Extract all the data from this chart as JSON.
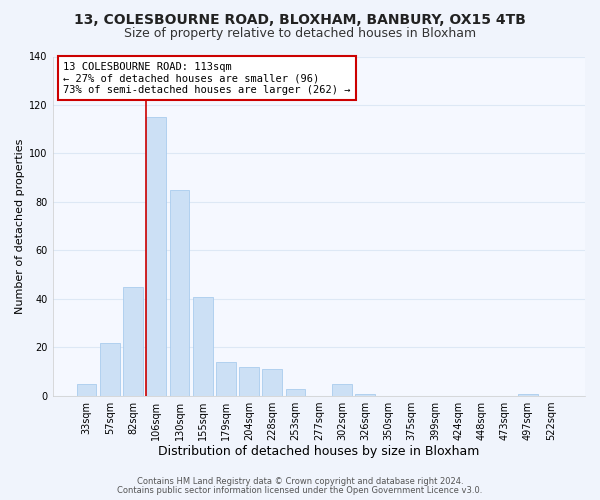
{
  "title1": "13, COLESBOURNE ROAD, BLOXHAM, BANBURY, OX15 4TB",
  "title2": "Size of property relative to detached houses in Bloxham",
  "xlabel": "Distribution of detached houses by size in Bloxham",
  "ylabel": "Number of detached properties",
  "bar_labels": [
    "33sqm",
    "57sqm",
    "82sqm",
    "106sqm",
    "130sqm",
    "155sqm",
    "179sqm",
    "204sqm",
    "228sqm",
    "253sqm",
    "277sqm",
    "302sqm",
    "326sqm",
    "350sqm",
    "375sqm",
    "399sqm",
    "424sqm",
    "448sqm",
    "473sqm",
    "497sqm",
    "522sqm"
  ],
  "bar_values": [
    5,
    22,
    45,
    115,
    85,
    41,
    14,
    12,
    11,
    3,
    0,
    5,
    1,
    0,
    0,
    0,
    0,
    0,
    0,
    1,
    0
  ],
  "bar_color": "#cce0f5",
  "bar_edge_color": "#aaccee",
  "highlight_bar_index": 3,
  "highlight_color": "#cc0000",
  "ylim": [
    0,
    140
  ],
  "yticks": [
    0,
    20,
    40,
    60,
    80,
    100,
    120,
    140
  ],
  "annotation_title": "13 COLESBOURNE ROAD: 113sqm",
  "annotation_line1": "← 27% of detached houses are smaller (96)",
  "annotation_line2": "73% of semi-detached houses are larger (262) →",
  "annotation_box_color": "#ffffff",
  "annotation_box_edge": "#cc0000",
  "footnote1": "Contains HM Land Registry data © Crown copyright and database right 2024.",
  "footnote2": "Contains public sector information licensed under the Open Government Licence v3.0.",
  "bg_color": "#f0f4fc",
  "plot_bg_color": "#f5f8ff",
  "grid_color": "#dde8f5",
  "title1_fontsize": 10,
  "title2_fontsize": 9,
  "xlabel_fontsize": 9,
  "ylabel_fontsize": 8,
  "tick_fontsize": 7,
  "footnote_fontsize": 6
}
